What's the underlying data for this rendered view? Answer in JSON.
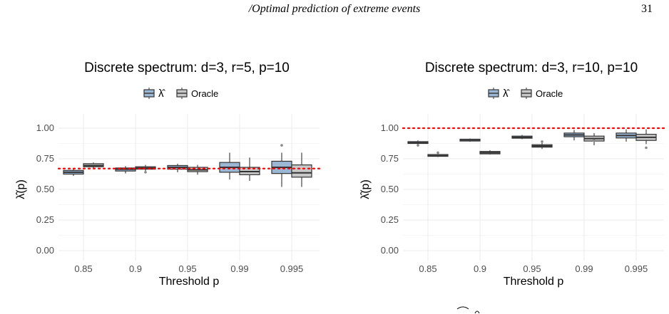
{
  "page": {
    "running_header": "/Optimal prediction of extreme events",
    "page_number": "31"
  },
  "colors": {
    "lambda_fill": "#9bb7d4",
    "oracle_fill": "#c8c8c8",
    "box_stroke": "#333333",
    "reference_line": "#ff0000",
    "grid": "#ebebeb",
    "outlier": "#888888"
  },
  "chart_data": [
    {
      "type": "box",
      "title": "Discrete spectrum: d=3, r=5, p=10",
      "xlabel": "Threshold p",
      "ylabel": "λ̂(p)",
      "categories": [
        "0.85",
        "0.9",
        "0.95",
        "0.99",
        "0.995"
      ],
      "ylim": [
        0,
        1
      ],
      "yticks": [
        "0.00",
        "0.25",
        "0.50",
        "0.75",
        "1.00"
      ],
      "reference_line": 0.67,
      "legend": {
        "position": "top",
        "entries": [
          "λ̂",
          "Oracle"
        ]
      },
      "series": [
        {
          "name": "λ̂",
          "boxes": [
            {
              "min": 0.61,
              "q1": 0.625,
              "median": 0.64,
              "q3": 0.655,
              "max": 0.67,
              "outliers": []
            },
            {
              "min": 0.63,
              "q1": 0.65,
              "median": 0.665,
              "q3": 0.675,
              "max": 0.69,
              "outliers": []
            },
            {
              "min": 0.64,
              "q1": 0.665,
              "median": 0.68,
              "q3": 0.695,
              "max": 0.71,
              "outliers": []
            },
            {
              "min": 0.58,
              "q1": 0.64,
              "median": 0.68,
              "q3": 0.72,
              "max": 0.8,
              "outliers": []
            },
            {
              "min": 0.52,
              "q1": 0.63,
              "median": 0.68,
              "q3": 0.73,
              "max": 0.8,
              "outliers": [
                0.86
              ]
            }
          ]
        },
        {
          "name": "Oracle",
          "boxes": [
            {
              "min": 0.67,
              "q1": 0.685,
              "median": 0.695,
              "q3": 0.71,
              "max": 0.72,
              "outliers": []
            },
            {
              "min": 0.65,
              "q1": 0.665,
              "median": 0.675,
              "q3": 0.685,
              "max": 0.7,
              "outliers": [
                0.64
              ]
            },
            {
              "min": 0.62,
              "q1": 0.645,
              "median": 0.66,
              "q3": 0.68,
              "max": 0.7,
              "outliers": []
            },
            {
              "min": 0.57,
              "q1": 0.62,
              "median": 0.645,
              "q3": 0.68,
              "max": 0.76,
              "outliers": []
            },
            {
              "min": 0.52,
              "q1": 0.6,
              "median": 0.635,
              "q3": 0.7,
              "max": 0.8,
              "outliers": []
            }
          ]
        }
      ]
    },
    {
      "type": "box",
      "title": "Discrete spectrum: d=3, r=10, p=10",
      "xlabel": "Threshold p",
      "ylabel": "λ̂(p)",
      "categories": [
        "0.85",
        "0.9",
        "0.95",
        "0.99",
        "0.995"
      ],
      "ylim": [
        0,
        1
      ],
      "yticks": [
        "0.00",
        "0.25",
        "0.50",
        "0.75",
        "1.00"
      ],
      "reference_line": 1.0,
      "legend": {
        "position": "top",
        "entries": [
          "λ̂",
          "Oracle"
        ]
      },
      "series": [
        {
          "name": "λ̂",
          "boxes": [
            {
              "min": 0.865,
              "q1": 0.875,
              "median": 0.88,
              "q3": 0.89,
              "max": 0.9,
              "outliers": [
                0.86
              ]
            },
            {
              "min": 0.89,
              "q1": 0.895,
              "median": 0.9,
              "q3": 0.91,
              "max": 0.915,
              "outliers": []
            },
            {
              "min": 0.91,
              "q1": 0.918,
              "median": 0.925,
              "q3": 0.935,
              "max": 0.945,
              "outliers": []
            },
            {
              "min": 0.9,
              "q1": 0.93,
              "median": 0.945,
              "q3": 0.96,
              "max": 0.985,
              "outliers": []
            },
            {
              "min": 0.89,
              "q1": 0.92,
              "median": 0.94,
              "q3": 0.96,
              "max": 0.99,
              "outliers": []
            }
          ]
        },
        {
          "name": "Oracle",
          "boxes": [
            {
              "min": 0.765,
              "q1": 0.77,
              "median": 0.775,
              "q3": 0.785,
              "max": 0.79,
              "outliers": [
                0.8
              ]
            },
            {
              "min": 0.785,
              "q1": 0.79,
              "median": 0.8,
              "q3": 0.81,
              "max": 0.82,
              "outliers": []
            },
            {
              "min": 0.83,
              "q1": 0.845,
              "median": 0.855,
              "q3": 0.865,
              "max": 0.88,
              "outliers": [
                0.89
              ]
            },
            {
              "min": 0.86,
              "q1": 0.895,
              "median": 0.915,
              "q3": 0.935,
              "max": 0.96,
              "outliers": [
                0.9
              ]
            },
            {
              "min": 0.87,
              "q1": 0.9,
              "median": 0.925,
              "q3": 0.95,
              "max": 0.99,
              "outliers": [
                0.84
              ]
            }
          ]
        }
      ]
    }
  ]
}
